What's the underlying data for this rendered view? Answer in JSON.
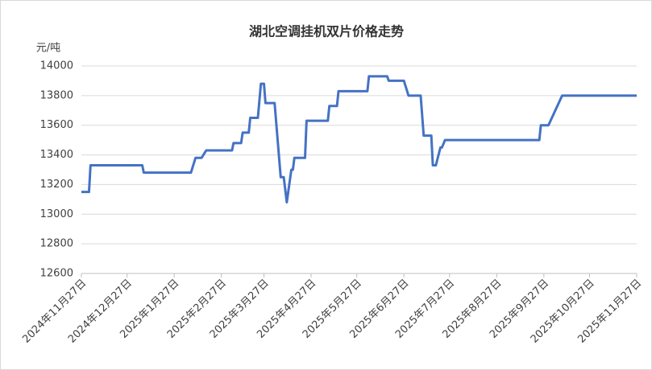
{
  "chart_data": {
    "type": "line",
    "title": "湖北空调挂机双片价格走势",
    "y_label": "元/吨",
    "x": [
      "2024-11-27",
      "2024-12-02",
      "2024-12-03",
      "2025-01-06",
      "2025-01-07",
      "2025-02-07",
      "2025-02-10",
      "2025-02-14",
      "2025-02-17",
      "2025-03-06",
      "2025-03-07",
      "2025-03-12",
      "2025-03-13",
      "2025-03-17",
      "2025-03-18",
      "2025-03-23",
      "2025-03-25",
      "2025-03-27",
      "2025-03-28",
      "2025-04-03",
      "2025-04-07",
      "2025-04-09",
      "2025-04-11",
      "2025-04-14",
      "2025-04-15",
      "2025-04-16",
      "2025-04-23",
      "2025-04-24",
      "2025-05-08",
      "2025-05-09",
      "2025-05-14",
      "2025-05-15",
      "2025-06-03",
      "2025-06-04",
      "2025-06-16",
      "2025-06-17",
      "2025-06-27",
      "2025-06-30",
      "2025-07-08",
      "2025-07-10",
      "2025-07-15",
      "2025-07-16",
      "2025-07-18",
      "2025-07-21",
      "2025-07-22",
      "2025-07-24",
      "2025-09-24",
      "2025-09-25",
      "2025-09-30",
      "2025-10-09",
      "2025-11-27"
    ],
    "series": [
      {
        "name": "湖北空调挂机双片",
        "color": "#4472c4",
        "values": [
          13150,
          13150,
          13330,
          13330,
          13280,
          13280,
          13380,
          13380,
          13430,
          13430,
          13480,
          13480,
          13550,
          13550,
          13650,
          13650,
          13880,
          13880,
          13750,
          13750,
          13250,
          13250,
          13080,
          13300,
          13300,
          13380,
          13380,
          13630,
          13630,
          13730,
          13730,
          13830,
          13830,
          13930,
          13930,
          13900,
          13900,
          13800,
          13800,
          13530,
          13530,
          13330,
          13330,
          13450,
          13450,
          13500,
          13500,
          13600,
          13600,
          13800,
          13800
        ]
      }
    ],
    "xlim": [
      "2024-11-27",
      "2025-11-27"
    ],
    "xticks": [
      {
        "value": "2024-11-27",
        "label": "2024年11月27日"
      },
      {
        "value": "2024-12-27",
        "label": "2024年12月27日"
      },
      {
        "value": "2025-01-27",
        "label": "2025年1月27日"
      },
      {
        "value": "2025-02-27",
        "label": "2025年2月27日"
      },
      {
        "value": "2025-03-27",
        "label": "2025年3月27日"
      },
      {
        "value": "2025-04-27",
        "label": "2025年4月27日"
      },
      {
        "value": "2025-05-27",
        "label": "2025年5月27日"
      },
      {
        "value": "2025-06-27",
        "label": "2025年6月27日"
      },
      {
        "value": "2025-07-27",
        "label": "2025年7月27日"
      },
      {
        "value": "2025-08-27",
        "label": "2025年8月27日"
      },
      {
        "value": "2025-09-27",
        "label": "2025年9月27日"
      },
      {
        "value": "2025-10-27",
        "label": "2025年10月27日"
      },
      {
        "value": "2025-11-27",
        "label": "2025年11月27日"
      }
    ],
    "ylim": [
      12600,
      14000
    ],
    "yticks": [
      12600,
      12800,
      13000,
      13200,
      13400,
      13600,
      13800,
      14000
    ],
    "grid": true
  }
}
